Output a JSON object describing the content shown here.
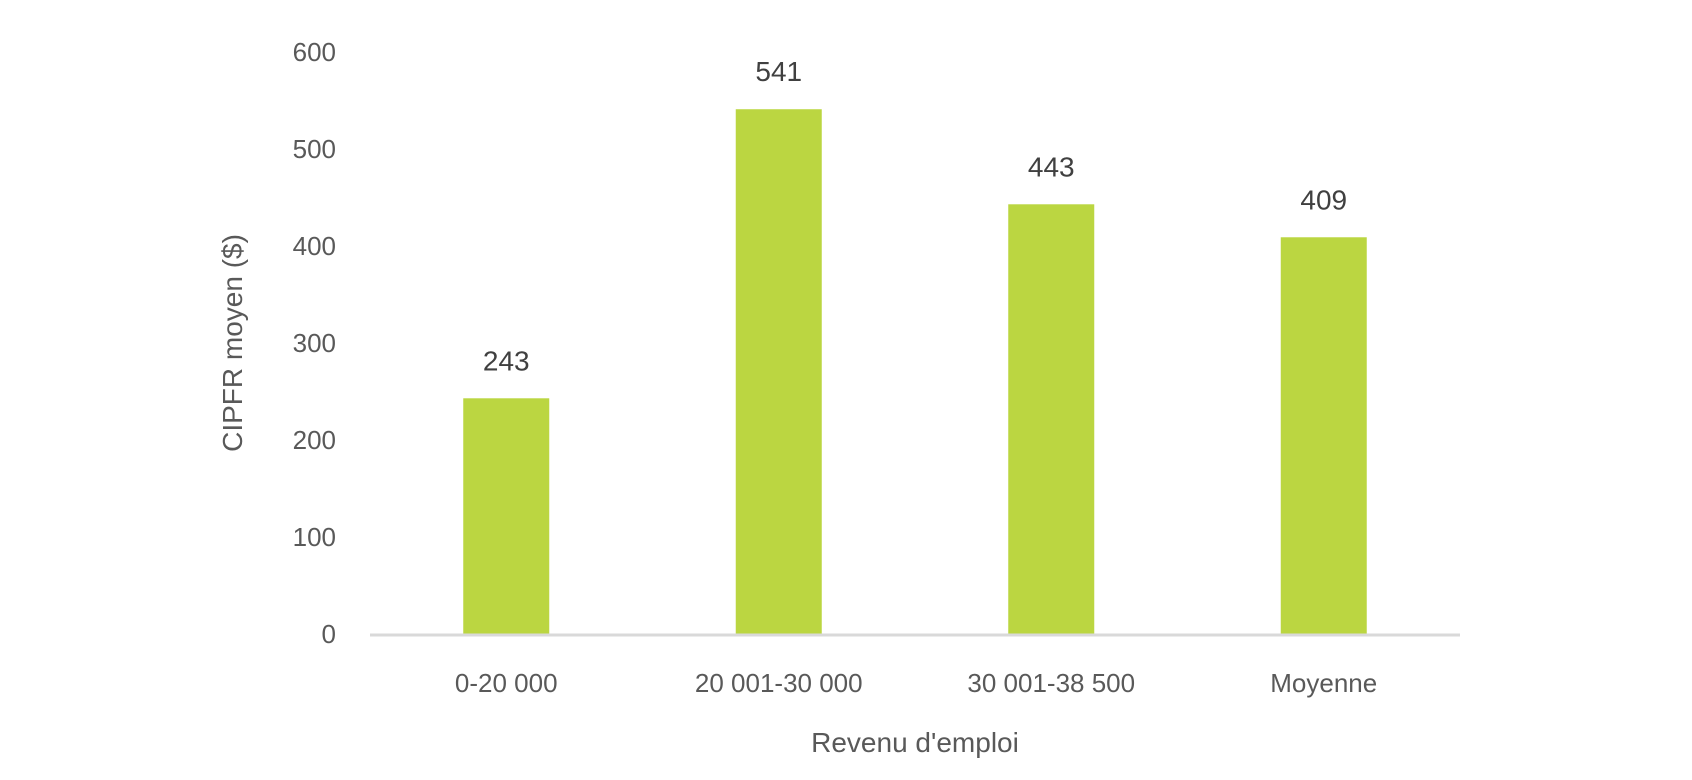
{
  "chart_data": {
    "type": "bar",
    "categories": [
      "0-20 000",
      "20 001-30 000",
      "30 001-38 500",
      "Moyenne"
    ],
    "values": [
      243,
      541,
      443,
      409
    ],
    "data_labels": [
      "243",
      "541",
      "443",
      "409"
    ],
    "title": "",
    "xlabel": "Revenu d'emploi",
    "ylabel": "CIPFR moyen ($)",
    "ylim": [
      0,
      600
    ],
    "yticks": [
      0,
      100,
      200,
      300,
      400,
      500,
      600
    ],
    "grid": false,
    "legend": "none",
    "bar_color": "#BBD641",
    "axis_color": "#D9D9D9"
  }
}
